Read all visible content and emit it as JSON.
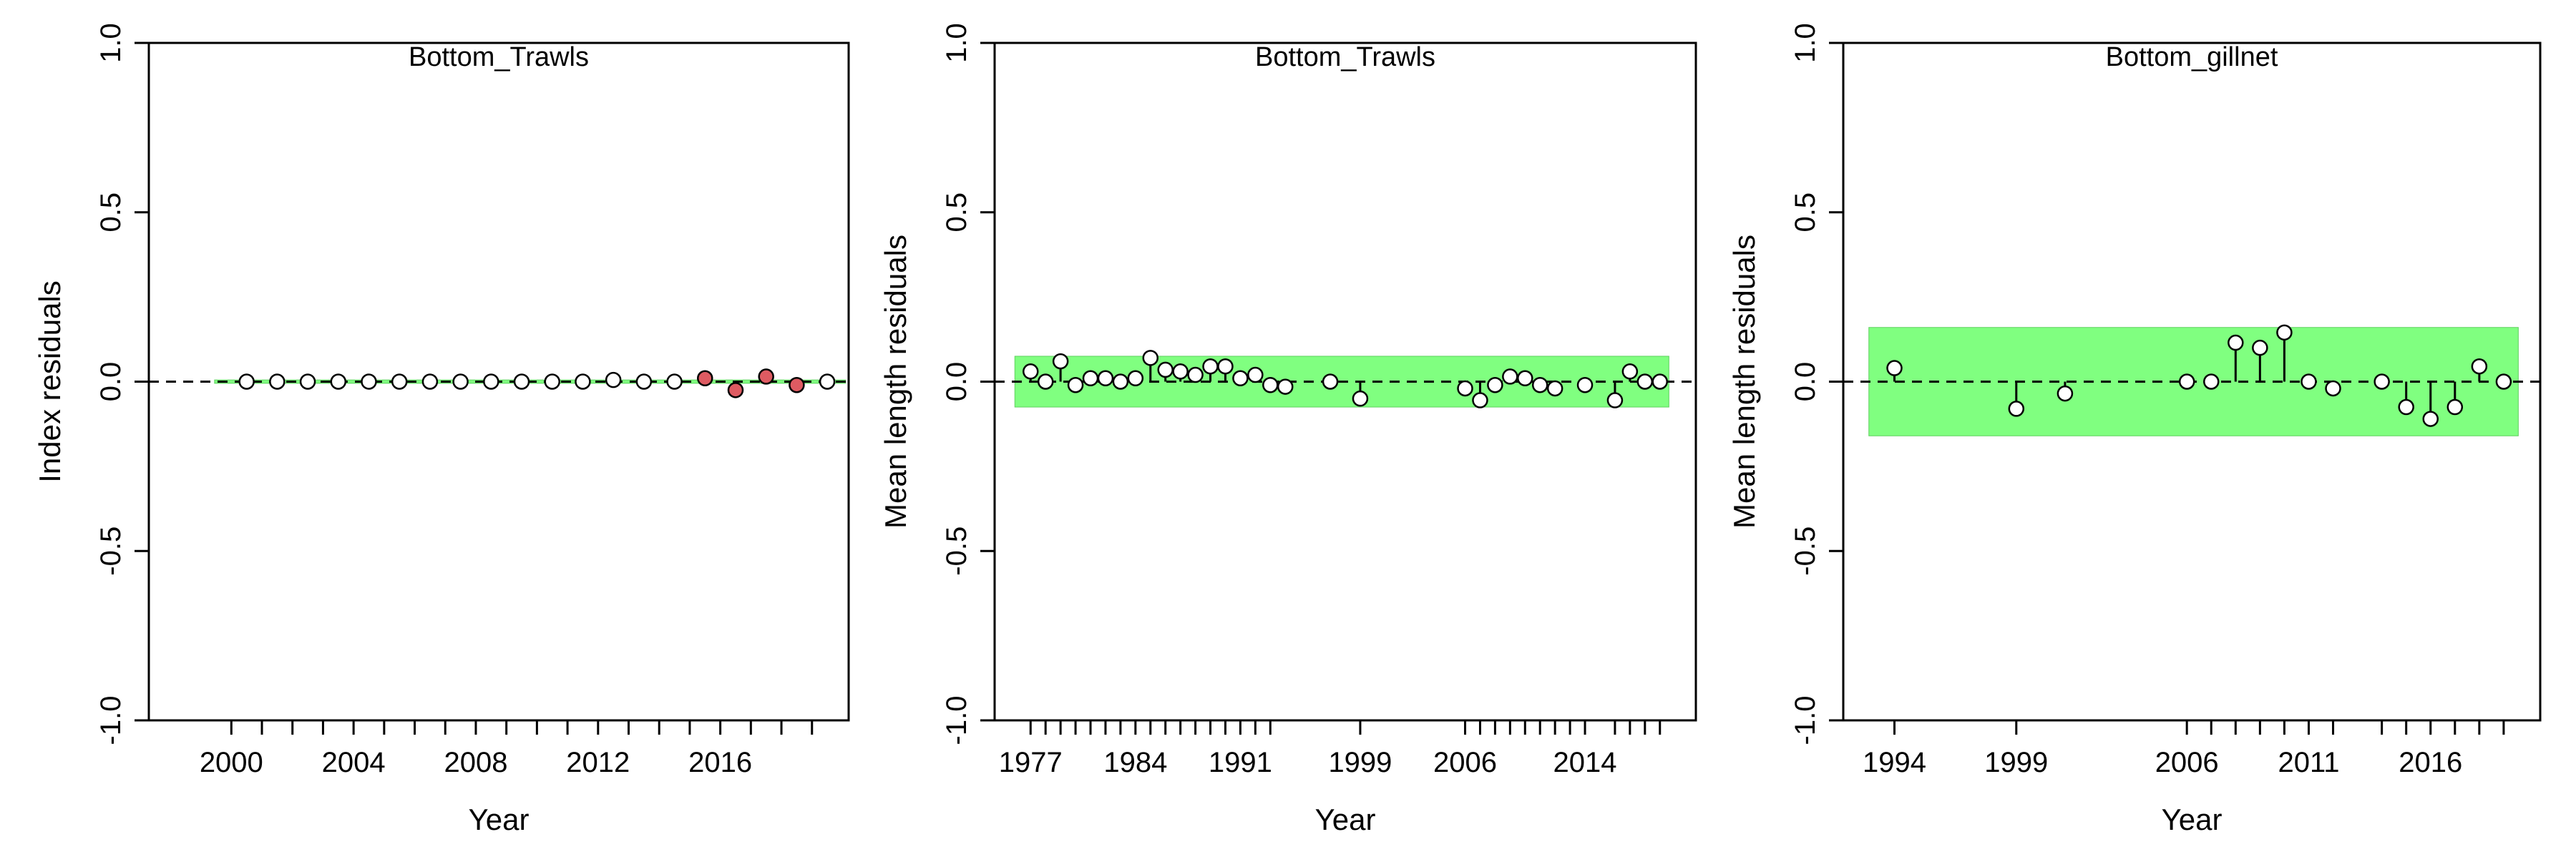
{
  "chart_data": [
    {
      "type": "scatter",
      "title": "Bottom_Trawls",
      "xlabel": "Year",
      "ylabel": "Index residuals",
      "xlim": [
        1997.3,
        2020.2
      ],
      "ylim": [
        -1.0,
        1.0
      ],
      "yticks": [
        -1.0,
        -0.5,
        0.0,
        0.5,
        1.0
      ],
      "ytick_labels": [
        "-1.0",
        "-0.5",
        "0.0",
        "0.5",
        "1.0"
      ],
      "xticks_labeled": [
        2000,
        2004,
        2008,
        2012,
        2016
      ],
      "xticks_minor": [
        2001,
        2002,
        2003,
        2005,
        2006,
        2007,
        2009,
        2010,
        2011,
        2013,
        2014,
        2015,
        2017,
        2018,
        2019
      ],
      "band": [
        -0.005,
        0.005
      ],
      "x": [
        2000.5,
        2001.5,
        2002.5,
        2003.5,
        2004.5,
        2005.5,
        2006.5,
        2007.5,
        2008.5,
        2009.5,
        2010.5,
        2011.5,
        2012.5,
        2013.5,
        2014.5,
        2015.5,
        2016.5,
        2017.5,
        2018.5,
        2019.5
      ],
      "y": [
        0.0,
        0.0,
        0.0,
        0.0,
        0.0,
        0.0,
        0.0,
        0.0,
        0.0,
        0.0,
        0.0,
        0.0,
        0.005,
        0.0,
        0.0,
        0.01,
        -0.025,
        0.015,
        -0.01,
        0.0
      ],
      "outlier": [
        false,
        false,
        false,
        false,
        false,
        false,
        false,
        false,
        false,
        false,
        false,
        false,
        false,
        false,
        false,
        true,
        true,
        true,
        true,
        false
      ]
    },
    {
      "type": "scatter",
      "title": "Bottom_Trawls",
      "xlabel": "Year",
      "ylabel": "Mean length residuals",
      "xlim": [
        1974.6,
        2021.4
      ],
      "ylim": [
        -1.0,
        1.0
      ],
      "yticks": [
        -1.0,
        -0.5,
        0.0,
        0.5,
        1.0
      ],
      "ytick_labels": [
        "-1.0",
        "-0.5",
        "0.0",
        "0.5",
        "1.0"
      ],
      "xticks_labeled": [
        1977,
        1984,
        1991,
        1999,
        2006,
        2014
      ],
      "xticks_minor": [
        1978,
        1979,
        1980,
        1981,
        1982,
        1983,
        1985,
        1986,
        1987,
        1988,
        1989,
        1990,
        1992,
        1993,
        2007,
        2008,
        2009,
        2010,
        2011,
        2012,
        2013,
        2016,
        2017,
        2018,
        2019
      ],
      "band": [
        -0.075,
        0.075
      ],
      "x": [
        1977,
        1978,
        1979,
        1980,
        1981,
        1982,
        1983,
        1984,
        1985,
        1986,
        1987,
        1988,
        1989,
        1990,
        1991,
        1992,
        1993,
        1994,
        1997,
        1999,
        2006,
        2007,
        2008,
        2009,
        2010,
        2011,
        2012,
        2014,
        2016,
        2017,
        2018,
        2019
      ],
      "y": [
        0.03,
        0.0,
        0.06,
        -0.01,
        0.01,
        0.01,
        0.0,
        0.01,
        0.07,
        0.035,
        0.03,
        0.02,
        0.045,
        0.045,
        0.01,
        0.02,
        -0.01,
        -0.015,
        0.0,
        -0.05,
        -0.02,
        -0.055,
        -0.01,
        0.015,
        0.01,
        -0.01,
        -0.02,
        -0.01,
        -0.055,
        0.03,
        0.0,
        0.0
      ],
      "outlier": [
        false,
        false,
        false,
        false,
        false,
        false,
        false,
        false,
        false,
        false,
        false,
        false,
        false,
        false,
        false,
        false,
        false,
        false,
        false,
        false,
        false,
        false,
        false,
        false,
        false,
        false,
        false,
        false,
        false,
        false,
        false,
        false
      ]
    },
    {
      "type": "scatter",
      "title": "Bottom_gillnet",
      "xlabel": "Year",
      "ylabel": "Mean length residuals",
      "xlim": [
        1991.9,
        2020.5
      ],
      "ylim": [
        -1.0,
        1.0
      ],
      "yticks": [
        -1.0,
        -0.5,
        0.0,
        0.5,
        1.0
      ],
      "ytick_labels": [
        "-1.0",
        "-0.5",
        "0.0",
        "0.5",
        "1.0"
      ],
      "xticks_labeled": [
        1994,
        1999,
        2006,
        2011,
        2016
      ],
      "xticks_minor": [
        2007,
        2008,
        2009,
        2010,
        2012,
        2014,
        2015,
        2017,
        2018,
        2019
      ],
      "band": [
        -0.16,
        0.16
      ],
      "x": [
        1994,
        1999,
        2001,
        2006,
        2007,
        2008,
        2009,
        2010,
        2011,
        2012,
        2014,
        2015,
        2016,
        2017,
        2018,
        2019
      ],
      "y": [
        0.04,
        -0.08,
        -0.035,
        0.0,
        0.0,
        0.115,
        0.1,
        0.145,
        0.0,
        -0.02,
        0.0,
        -0.075,
        -0.11,
        -0.075,
        0.045,
        0.0
      ],
      "outlier": [
        false,
        false,
        false,
        false,
        false,
        false,
        false,
        false,
        false,
        false,
        false,
        false,
        false,
        false,
        false,
        false
      ]
    }
  ],
  "colors": {
    "band": "#80ff80",
    "point": "#ffffff",
    "outlier": "#de5b62",
    "axis": "#000000"
  }
}
